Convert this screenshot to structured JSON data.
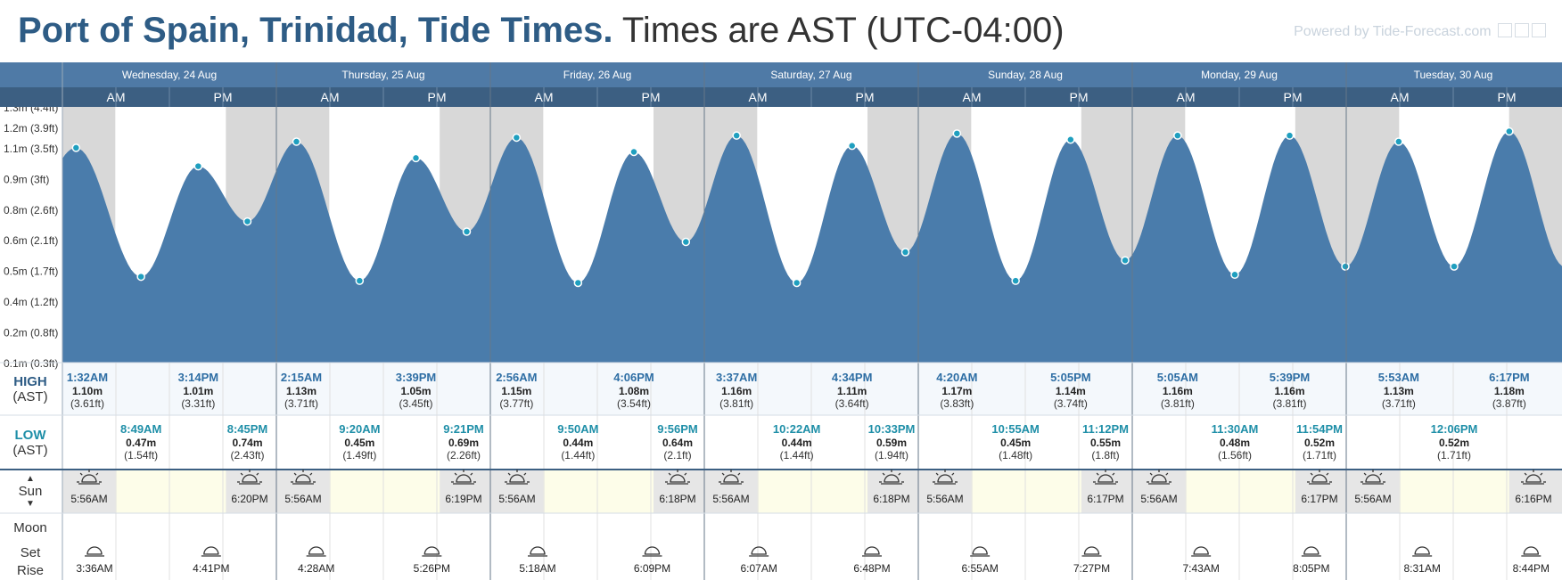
{
  "title": {
    "place": "Port of Spain, Trinidad, Tide Times.",
    "tz": "Times are AST (UTC-04:00)"
  },
  "powered_by": "Powered by Tide-Forecast.com",
  "labels": {
    "high": "HIGH",
    "low": "LOW",
    "ast": "(AST)",
    "sun": "Sun",
    "moon": "Moon",
    "set": "Set",
    "rise": "Rise",
    "am": "AM",
    "pm": "PM"
  },
  "colors": {
    "header_bar": "#4f7aa6",
    "subheader_bar": "#3c5f82",
    "tide_fill": "#4a7cab",
    "night": "#d8d8d8",
    "dot": "#1f9fbf",
    "high_text": "#2e6ea4",
    "low_text": "#1f8fa8",
    "sun_row_bg": "#fdfde9"
  },
  "days": [
    "Wednesday, 24 Aug",
    "Thursday, 25 Aug",
    "Friday, 26 Aug",
    "Saturday, 27 Aug",
    "Sunday, 28 Aug",
    "Monday, 29 Aug",
    "Tuesday, 30 Aug"
  ],
  "y_axis": [
    "1.3m (4.4ft)",
    "1.2m (3.9ft)",
    "1.1m (3.5ft)",
    "0.9m (3ft)",
    "0.8m (2.6ft)",
    "0.6m (2.1ft)",
    "0.5m (1.7ft)",
    "0.4m (1.2ft)",
    "0.2m (0.8ft)",
    "0.1m (0.3ft)"
  ],
  "highs": [
    [
      {
        "time": "1:32AM",
        "m": "1.10m",
        "ft": "(3.61ft)"
      },
      {
        "time": "3:14PM",
        "m": "1.01m",
        "ft": "(3.31ft)"
      }
    ],
    [
      {
        "time": "2:15AM",
        "m": "1.13m",
        "ft": "(3.71ft)"
      },
      {
        "time": "3:39PM",
        "m": "1.05m",
        "ft": "(3.45ft)"
      }
    ],
    [
      {
        "time": "2:56AM",
        "m": "1.15m",
        "ft": "(3.77ft)"
      },
      {
        "time": "4:06PM",
        "m": "1.08m",
        "ft": "(3.54ft)"
      }
    ],
    [
      {
        "time": "3:37AM",
        "m": "1.16m",
        "ft": "(3.81ft)"
      },
      {
        "time": "4:34PM",
        "m": "1.11m",
        "ft": "(3.64ft)"
      }
    ],
    [
      {
        "time": "4:20AM",
        "m": "1.17m",
        "ft": "(3.83ft)"
      },
      {
        "time": "5:05PM",
        "m": "1.14m",
        "ft": "(3.74ft)"
      }
    ],
    [
      {
        "time": "5:05AM",
        "m": "1.16m",
        "ft": "(3.81ft)"
      },
      {
        "time": "5:39PM",
        "m": "1.16m",
        "ft": "(3.81ft)"
      }
    ],
    [
      {
        "time": "5:53AM",
        "m": "1.13m",
        "ft": "(3.71ft)"
      },
      {
        "time": "6:17PM",
        "m": "1.18m",
        "ft": "(3.87ft)"
      }
    ]
  ],
  "lows": [
    [
      {
        "time": "8:49AM",
        "m": "0.47m",
        "ft": "(1.54ft)"
      },
      {
        "time": "8:45PM",
        "m": "0.74m",
        "ft": "(2.43ft)"
      }
    ],
    [
      {
        "time": "9:20AM",
        "m": "0.45m",
        "ft": "(1.49ft)"
      },
      {
        "time": "9:21PM",
        "m": "0.69m",
        "ft": "(2.26ft)"
      }
    ],
    [
      {
        "time": "9:50AM",
        "m": "0.44m",
        "ft": "(1.44ft)"
      },
      {
        "time": "9:56PM",
        "m": "0.64m",
        "ft": "(2.1ft)"
      }
    ],
    [
      {
        "time": "10:22AM",
        "m": "0.44m",
        "ft": "(1.44ft)"
      },
      {
        "time": "10:33PM",
        "m": "0.59m",
        "ft": "(1.94ft)"
      }
    ],
    [
      {
        "time": "10:55AM",
        "m": "0.45m",
        "ft": "(1.48ft)"
      },
      {
        "time": "11:12PM",
        "m": "0.55m",
        "ft": "(1.8ft)"
      }
    ],
    [
      {
        "time": "11:30AM",
        "m": "0.48m",
        "ft": "(1.56ft)"
      },
      {
        "time": "11:54PM",
        "m": "0.52m",
        "ft": "(1.71ft)"
      }
    ],
    [
      {
        "time": "12:06PM",
        "m": "0.52m",
        "ft": "(1.71ft)"
      }
    ]
  ],
  "sunrise": [
    "5:56AM",
    "5:56AM",
    "5:56AM",
    "5:56AM",
    "5:56AM",
    "5:56AM",
    "5:56AM"
  ],
  "sunset": [
    "6:20PM",
    "6:19PM",
    "6:18PM",
    "6:18PM",
    "6:17PM",
    "6:17PM",
    "6:16PM"
  ],
  "moonrise": [
    "3:36AM",
    "4:28AM",
    "5:18AM",
    "6:07AM",
    "6:55AM",
    "7:43AM",
    "8:31AM"
  ],
  "moonset": [
    "4:41PM",
    "5:26PM",
    "6:09PM",
    "6:48PM",
    "7:27PM",
    "8:05PM",
    "8:44PM"
  ]
}
